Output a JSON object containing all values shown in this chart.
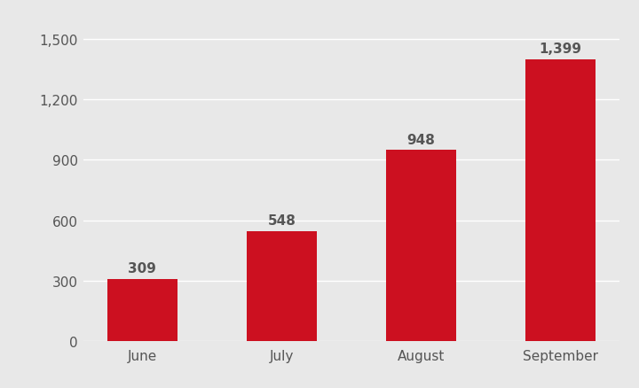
{
  "categories": [
    "June",
    "July",
    "August",
    "September"
  ],
  "values": [
    309,
    548,
    948,
    1399
  ],
  "bar_color": "#cc1020",
  "background_color": "#e8e8e8",
  "ylim": [
    0,
    1600
  ],
  "yticks": [
    0,
    300,
    600,
    900,
    1200,
    1500
  ],
  "label_fontsize": 11,
  "tick_fontsize": 11,
  "bar_width": 0.5,
  "value_labels": [
    "309",
    "548",
    "948",
    "1,399"
  ],
  "grid_color": "#ffffff",
  "text_color": "#555555"
}
